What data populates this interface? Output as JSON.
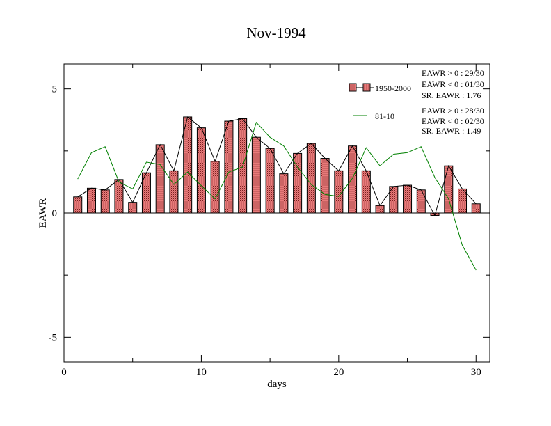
{
  "chart_data": {
    "type": "bar",
    "title": "Nov-1994",
    "xlabel": "days",
    "ylabel": "EAWR",
    "xlim": [
      0,
      31
    ],
    "ylim": [
      -6,
      6
    ],
    "x_ticks": [
      0,
      10,
      20,
      30
    ],
    "x_tick_labels": [
      "0",
      "10",
      "20",
      "30"
    ],
    "y_ticks": [
      -5,
      0,
      5
    ],
    "y_tick_labels": [
      "-5",
      "0",
      "5"
    ],
    "grid": false,
    "legend_position": "top-right",
    "colors": {
      "bar_fill": "#e07070",
      "bar_edge": "#000000",
      "line_81_10": "#008000",
      "line_1950": "#000000"
    },
    "x": [
      1,
      2,
      3,
      4,
      5,
      6,
      7,
      8,
      9,
      10,
      11,
      12,
      13,
      14,
      15,
      16,
      17,
      18,
      19,
      20,
      21,
      22,
      23,
      24,
      25,
      26,
      27,
      28,
      29,
      30
    ],
    "series": [
      {
        "name": "1950-2000",
        "style": "bar",
        "values": [
          0.65,
          1.0,
          0.93,
          1.35,
          0.43,
          1.62,
          2.75,
          1.7,
          3.87,
          3.43,
          2.08,
          3.7,
          3.8,
          3.05,
          2.6,
          1.58,
          2.4,
          2.8,
          2.2,
          1.7,
          2.7,
          1.7,
          0.3,
          1.07,
          1.12,
          0.93,
          -0.1,
          1.9,
          0.97,
          0.37
        ]
      },
      {
        "name": "81-10",
        "style": "line",
        "values": [
          1.37,
          2.43,
          2.67,
          1.25,
          0.97,
          2.05,
          1.95,
          1.15,
          1.65,
          1.1,
          0.57,
          1.65,
          1.85,
          3.65,
          3.05,
          2.7,
          1.85,
          1.15,
          0.75,
          0.67,
          1.4,
          2.63,
          1.9,
          2.37,
          2.43,
          2.67,
          1.43,
          0.57,
          -1.3,
          -2.3
        ]
      }
    ],
    "legend_entries": [
      {
        "label": "1950-2000",
        "stats": [
          "EAWR > 0 : 29/30",
          "EAWR < 0 : 01/30",
          "SR. EAWR :  1.76"
        ]
      },
      {
        "label": "81-10",
        "stats": [
          "EAWR > 0 : 28/30",
          "EAWR < 0 : 02/30",
          "SR. EAWR :  1.49"
        ]
      }
    ]
  }
}
